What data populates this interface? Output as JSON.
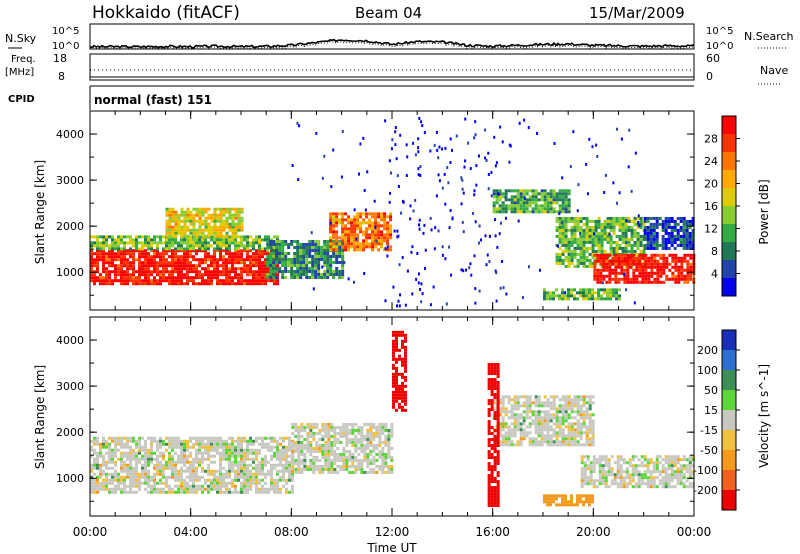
{
  "header": {
    "station": "Hokkaido (fitACF)",
    "beam": "Beam 04",
    "date": "15/Mar/2009"
  },
  "panels": {
    "nsky_label": "N.Sky",
    "nsearch_label": "N.Search",
    "nsky_ticks": [
      "10^5",
      "10^0"
    ],
    "nsearch_ticks": [
      "10^5",
      "10^0"
    ],
    "freq_label": "Freq.",
    "freq_unit": "[MHz]",
    "freq_ticks": [
      "18",
      "8"
    ],
    "nave_label": "Nave",
    "nave_ticks": [
      "60",
      "0"
    ],
    "cpid_label": "CPID",
    "cpid_value": "normal (fast) 151"
  },
  "power_panel": {
    "ylabel": "Slant Range [km]",
    "yticks": [
      "4000",
      "3000",
      "2000",
      "1000"
    ],
    "colorbar_label": "Power [dB]",
    "colorbar_ticks": [
      "28",
      "24",
      "20",
      "16",
      "12",
      "8",
      "4"
    ],
    "colorbar_colors": [
      "#ff0000",
      "#ff3300",
      "#ff7700",
      "#ffaa00",
      "#ddcc00",
      "#88cc33",
      "#33aa44",
      "#227755",
      "#2244aa",
      "#0000ee"
    ]
  },
  "velocity_panel": {
    "ylabel": "Slant Range [km]",
    "yticks": [
      "4000",
      "3000",
      "2000",
      "1000"
    ],
    "colorbar_label": "Velocity [m s^-1]",
    "colorbar_ticks": [
      "200",
      "100",
      "50",
      "15",
      "-15",
      "-50",
      "-100",
      "-200"
    ],
    "colorbar_colors": [
      "#1a2fb8",
      "#2d6fcf",
      "#3c8f56",
      "#5cd43a",
      "#c8c8c0",
      "#f0c040",
      "#f39a1c",
      "#f06020",
      "#ee0000"
    ]
  },
  "xaxis": {
    "label": "Time UT",
    "ticks": [
      "00:00",
      "04:00",
      "08:00",
      "12:00",
      "16:00",
      "20:00",
      "00:00"
    ]
  },
  "chart_data": {
    "type": "heatmap",
    "title": "Hokkaido (fitACF)  Beam 04  15/Mar/2009",
    "xlabel": "Time UT",
    "ylabel": "Slant Range [km]",
    "xlim_hours": [
      0,
      24
    ],
    "ylim_km": [
      180,
      4500
    ],
    "power_regions_db": [
      {
        "t": [
          0,
          7.5
        ],
        "r": [
          750,
          1500
        ],
        "value": 30
      },
      {
        "t": [
          0,
          7.5
        ],
        "r": [
          1500,
          1800
        ],
        "value": 14
      },
      {
        "t": [
          3,
          6
        ],
        "r": [
          1800,
          2400
        ],
        "value": 18
      },
      {
        "t": [
          7,
          10
        ],
        "r": [
          900,
          1700
        ],
        "value": 10
      },
      {
        "t": [
          9.5,
          12
        ],
        "r": [
          1500,
          2300
        ],
        "value": 24
      },
      {
        "t": [
          16,
          19
        ],
        "r": [
          2300,
          2800
        ],
        "value": 12
      },
      {
        "t": [
          18.5,
          22
        ],
        "r": [
          1100,
          2200
        ],
        "value": 14
      },
      {
        "t": [
          20,
          24
        ],
        "r": [
          800,
          1400
        ],
        "value": 30
      },
      {
        "t": [
          22,
          24
        ],
        "r": [
          1500,
          2200
        ],
        "value": 6
      },
      {
        "t": [
          18,
          21
        ],
        "r": [
          450,
          650
        ],
        "value": 14
      }
    ],
    "velocity_regions_ms": [
      {
        "t": [
          0,
          8
        ],
        "r": [
          700,
          1900
        ],
        "value": 0
      },
      {
        "t": [
          8,
          12
        ],
        "r": [
          1100,
          2200
        ],
        "value": 0
      },
      {
        "t": [
          16,
          20
        ],
        "r": [
          1700,
          2800
        ],
        "value": 0
      },
      {
        "t": [
          19.5,
          24
        ],
        "r": [
          800,
          1500
        ],
        "value": 0
      },
      {
        "t": [
          18,
          20
        ],
        "r": [
          450,
          650
        ],
        "value": -60
      },
      {
        "t": [
          12,
          12.5
        ],
        "r": [
          2500,
          4200
        ],
        "value": -200
      },
      {
        "t": [
          15.8,
          16.2
        ],
        "r": [
          400,
          3500
        ],
        "value": -200
      }
    ],
    "n_sky_profile_log10": [
      0.3,
      0.3,
      0.3,
      0.35,
      0.3,
      0.4,
      0.3,
      0.35,
      0.6,
      1.2,
      1.8,
      1.6,
      0.8,
      1.4,
      1.3,
      0.6,
      0.4,
      0.6,
      0.8,
      0.9,
      0.6,
      0.5,
      0.4,
      0.5,
      0.4
    ],
    "frequency_mhz": 11,
    "nave": 18
  }
}
